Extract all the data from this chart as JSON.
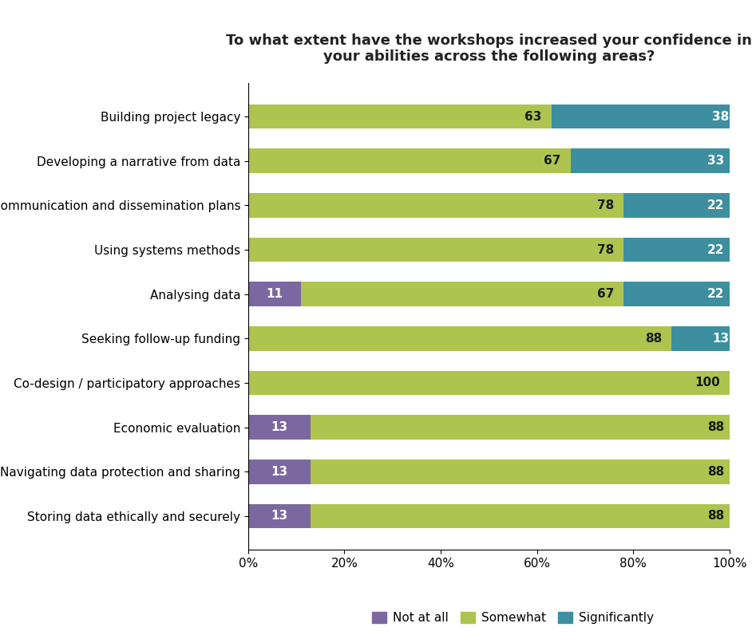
{
  "title": "To what extent have the workshops increased your confidence in\nyour abilities across the following areas?",
  "categories": [
    "Building project legacy",
    "Developing a narrative from data",
    "Communication and dissemination plans",
    "Using systems methods",
    "Analysing data",
    "Seeking follow-up funding",
    "Co-design / participatory approaches",
    "Economic evaluation",
    "Navigating data protection and sharing",
    "Storing data ethically and securely"
  ],
  "not_at_all": [
    0,
    0,
    0,
    0,
    11,
    0,
    0,
    13,
    13,
    13
  ],
  "somewhat": [
    63,
    67,
    78,
    78,
    67,
    88,
    100,
    88,
    88,
    88
  ],
  "significantly": [
    38,
    33,
    22,
    22,
    22,
    13,
    0,
    0,
    0,
    0
  ],
  "color_not_at_all": "#7b68a0",
  "color_somewhat": "#aec44f",
  "color_significantly": "#3d8fa0",
  "legend_labels": [
    "Not at all",
    "Somewhat",
    "Significantly"
  ],
  "xlim": [
    0,
    100
  ],
  "xtick_labels": [
    "0%",
    "20%",
    "40%",
    "60%",
    "80%",
    "100%"
  ],
  "xtick_values": [
    0,
    20,
    40,
    60,
    80,
    100
  ],
  "bar_height": 0.55,
  "title_fontsize": 13,
  "tick_fontsize": 11,
  "legend_fontsize": 11,
  "value_fontsize": 11
}
